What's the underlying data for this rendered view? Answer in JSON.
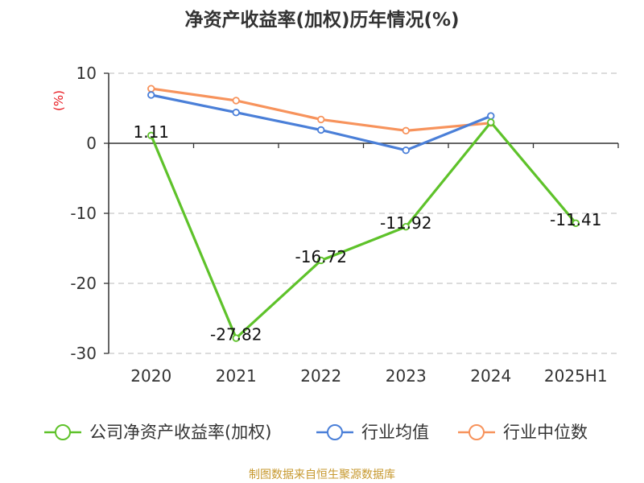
{
  "chart_data": {
    "type": "line",
    "title": "净资产收益率(加权)历年情况(%)",
    "ylabel": "(%)",
    "xlabel": "",
    "categories": [
      "2020",
      "2021",
      "2022",
      "2023",
      "2024",
      "2025H1"
    ],
    "ylim": [
      -30,
      10
    ],
    "yticks": [
      10,
      0,
      -10,
      -20,
      -30
    ],
    "grid": true,
    "legend_position": "bottom",
    "series": [
      {
        "name": "公司净资产收益率(加权)",
        "color": "#5ec22a",
        "values": [
          1.11,
          -27.82,
          -16.72,
          -11.92,
          3.0,
          -11.41
        ],
        "labels": [
          "1.11",
          "-27.82",
          "-16.72",
          "-11.92",
          "",
          "-11.41"
        ]
      },
      {
        "name": "行业均值",
        "color": "#4a7fd8",
        "values": [
          6.9,
          4.4,
          1.9,
          -1.0,
          3.9,
          null
        ],
        "labels": [
          "",
          "",
          "",
          "",
          "",
          ""
        ]
      },
      {
        "name": "行业中位数",
        "color": "#f7935c",
        "values": [
          7.8,
          6.1,
          3.4,
          1.8,
          2.9,
          null
        ],
        "labels": [
          "",
          "",
          "",
          "",
          "",
          ""
        ]
      }
    ]
  },
  "footer": "制图数据来自恒生聚源数据库"
}
